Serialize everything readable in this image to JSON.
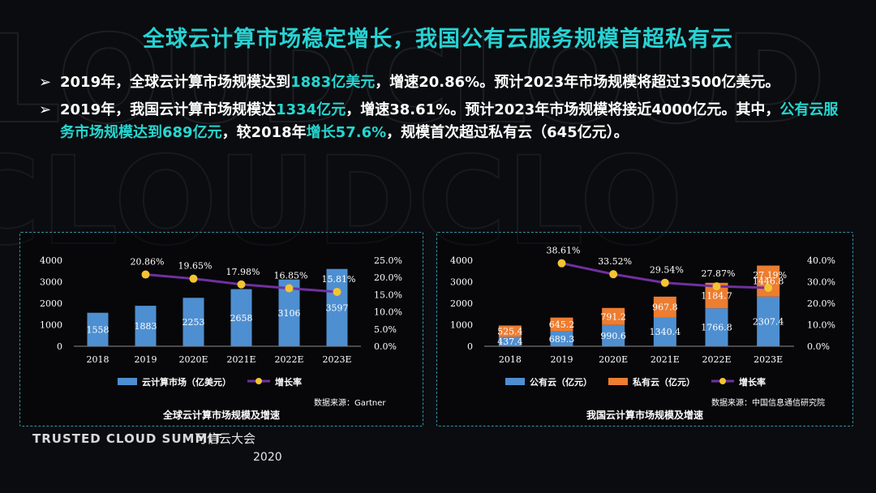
{
  "title": "全球云计算市场稳定增长，我国公有云服务规模首超私有云",
  "bullet_arrow": "➢",
  "bullets": [
    {
      "p1": "2019年，全球云计算市场规模达到",
      "h1": "1883亿美元",
      "p2": "，增速20.86%。预计2023年市场规模将超过3500亿美元。"
    },
    {
      "p1": "2019年，我国云计算市场规模达",
      "h1": "1334亿元",
      "p2": "，增速38.61%。预计2023年市场规模将接近4000亿元。其中，",
      "h2": "公有云服务市场规模达到689亿元",
      "p3": "，较2018年",
      "h3": "增长57.6%",
      "p4": "，规模首次超过私有云（645亿元）。"
    }
  ],
  "footer": {
    "brand": "TRUSTED CLOUD SUMMIT",
    "cn": "可信云大会",
    "year": "2020"
  },
  "colors": {
    "bar": "#4e8fd1",
    "bar2": "#ed7d31",
    "line": "#7030a0",
    "marker": "#f4c430",
    "accent": "#27d3d3"
  },
  "chart_data": [
    {
      "type": "bar",
      "title": "全球云计算市场规模及增速",
      "source": "数据来源：Gartner",
      "categories": [
        "2018",
        "2019",
        "2020E",
        "2021E",
        "2022E",
        "2023E"
      ],
      "series": [
        {
          "name": "云计算市场（亿美元）",
          "values": [
            1558,
            1883,
            2253,
            2658,
            3106,
            3597
          ]
        }
      ],
      "line_series": {
        "name": "增长率",
        "values": [
          null,
          20.86,
          19.65,
          17.98,
          16.85,
          15.81
        ],
        "labels": [
          "",
          "20.86%",
          "19.65%",
          "17.98%",
          "16.85%",
          "15.81%"
        ]
      },
      "ylim": [
        0,
        4000
      ],
      "yticks": [
        "0",
        "1000",
        "2000",
        "3000",
        "4000"
      ],
      "y2lim": [
        0,
        25
      ],
      "y2ticks": [
        "0.0%",
        "5.0%",
        "10.0%",
        "15.0%",
        "20.0%",
        "25.0%"
      ],
      "legend": "bottom"
    },
    {
      "type": "bar",
      "stacked": true,
      "title": "我国云计算市场规模及增速",
      "source": "数据来源：中国信息通信研究院",
      "categories": [
        "2018",
        "2019",
        "2020E",
        "2021E",
        "2022E",
        "2023E"
      ],
      "series": [
        {
          "name": "公有云（亿元）",
          "values": [
            437.4,
            689.3,
            990.6,
            1340.4,
            1766.8,
            2307.4
          ],
          "labels": [
            "437.4",
            "689.3",
            "990.6",
            "1340.4",
            "1766.8",
            "2307.4"
          ]
        },
        {
          "name": "私有云（亿元）",
          "values": [
            525.4,
            645.2,
            791.2,
            967.8,
            1184.7,
            1446.8
          ],
          "labels": [
            "525.4",
            "645.2",
            "791.2",
            "967.8",
            "1184.7",
            "1446.8"
          ]
        }
      ],
      "line_series": {
        "name": "增长率",
        "values": [
          null,
          38.61,
          33.52,
          29.54,
          27.87,
          27.19
        ],
        "labels": [
          "",
          "38.61%",
          "33.52%",
          "29.54%",
          "27.87%",
          "27.19%"
        ]
      },
      "ylim": [
        0,
        4000
      ],
      "yticks": [
        "0",
        "1000",
        "2000",
        "3000",
        "4000"
      ],
      "y2lim": [
        0,
        40
      ],
      "y2ticks": [
        "0.0%",
        "10.0%",
        "20.0%",
        "30.0%",
        "40.0%"
      ],
      "legend": "bottom"
    }
  ]
}
